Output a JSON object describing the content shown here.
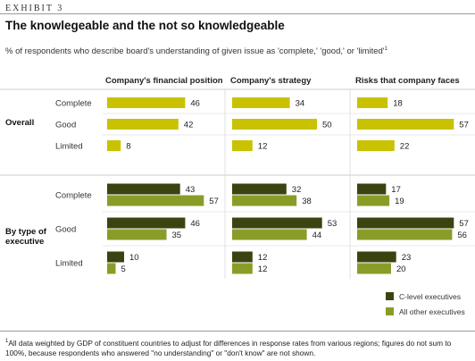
{
  "header": {
    "exhibit": "EXHIBIT 3",
    "title": "The knowlegeable and the not so knowledgeable",
    "subtitle": "% of respondents who describe board's understanding of given issue as 'complete,' 'good,' or 'limited'",
    "subtitle_sup": "1"
  },
  "footnote": {
    "sup": "1",
    "text": "All data weighted by GDP of constituent countries to adjust for differences in response rates from various regions; figures do not sum to 100%, because respondents who answered \"no understanding\" or \"don't know\" are not shown."
  },
  "chart_data": {
    "type": "bar",
    "orientation": "horizontal",
    "panels": [
      "Company's financial position",
      "Company's strategy",
      "Risks that company faces"
    ],
    "levels": [
      "Complete",
      "Good",
      "Limited"
    ],
    "groups": [
      {
        "label": "Overall",
        "series": [
          {
            "color": "#c9c200",
            "values": [
              [
                46,
                42,
                8
              ],
              [
                34,
                50,
                12
              ],
              [
                18,
                57,
                22
              ]
            ]
          }
        ]
      },
      {
        "label": "By type of executive",
        "series": [
          {
            "name": "C-level executives",
            "color": "#3a4410",
            "values": [
              [
                43,
                46,
                10
              ],
              [
                32,
                53,
                12
              ],
              [
                17,
                57,
                23
              ]
            ]
          },
          {
            "name": "All other executives",
            "color": "#8a9c28",
            "values": [
              [
                57,
                35,
                5
              ],
              [
                38,
                44,
                12
              ],
              [
                19,
                56,
                20
              ]
            ]
          }
        ]
      }
    ],
    "legend": {
      "position": "bottom-right",
      "items": [
        {
          "name": "C-level executives",
          "color": "#3a4410"
        },
        {
          "name": "All other executives",
          "color": "#8a9c28"
        }
      ]
    },
    "xlim": [
      0,
      60
    ]
  }
}
